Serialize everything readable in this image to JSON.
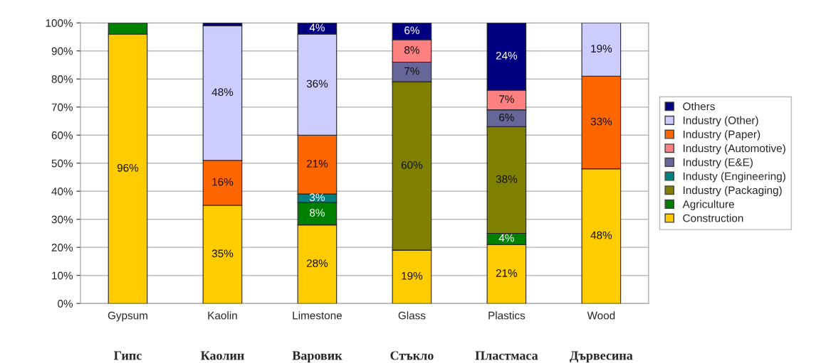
{
  "chart_data": {
    "type": "bar",
    "stacked": true,
    "categories": [
      "Gypsum",
      "Kaolin",
      "Limestone",
      "Glass",
      "Plastics",
      "Wood"
    ],
    "series": [
      {
        "name": "Construction",
        "color": "#ffcc00",
        "values": [
          96,
          35,
          28,
          19,
          21,
          48
        ],
        "value_labels": [
          "96%",
          "35%",
          "28%",
          "19%",
          "21%",
          "48%"
        ]
      },
      {
        "name": "Agriculture",
        "color": "#008000",
        "values": [
          4,
          null,
          8,
          null,
          4,
          null
        ],
        "value_labels": [
          null,
          null,
          "8%",
          null,
          "4%",
          null
        ]
      },
      {
        "name": "Industry (Packaging)",
        "color": "#808000",
        "values": [
          null,
          null,
          null,
          60,
          38,
          null
        ],
        "value_labels": [
          null,
          null,
          null,
          "60%",
          "38%",
          null
        ]
      },
      {
        "name": "Industy (Engineering)",
        "color": "#008080",
        "values": [
          null,
          null,
          3,
          null,
          null,
          null
        ],
        "value_labels": [
          null,
          null,
          "3%",
          null,
          null,
          null
        ]
      },
      {
        "name": "Industry (E&E)",
        "color": "#666699",
        "values": [
          null,
          null,
          null,
          7,
          6,
          null
        ],
        "value_labels": [
          null,
          null,
          null,
          "7%",
          "6%",
          null
        ]
      },
      {
        "name": "Industry (Automotive)",
        "color": "#ff8080",
        "values": [
          null,
          null,
          null,
          8,
          7,
          null
        ],
        "value_labels": [
          null,
          null,
          null,
          "8%",
          "7%",
          null
        ]
      },
      {
        "name": "Industry (Paper)",
        "color": "#ff6600",
        "values": [
          null,
          16,
          21,
          null,
          null,
          33
        ],
        "value_labels": [
          null,
          "16%",
          "21%",
          null,
          null,
          "33%"
        ]
      },
      {
        "name": "Industry (Other)",
        "color": "#ccccff",
        "values": [
          null,
          48,
          36,
          null,
          null,
          19
        ],
        "value_labels": [
          null,
          "48%",
          "36%",
          null,
          null,
          "19%"
        ]
      },
      {
        "name": "Others",
        "color": "#000080",
        "values": [
          null,
          1,
          4,
          6,
          24,
          null
        ],
        "value_labels": [
          null,
          null,
          "4%",
          "6%",
          "24%",
          null
        ]
      }
    ],
    "ylim": [
      0,
      100
    ],
    "yticks": [
      {
        "value": 0,
        "label": "0%"
      },
      {
        "value": 10,
        "label": "10%"
      },
      {
        "value": 20,
        "label": "20%"
      },
      {
        "value": 30,
        "label": "30%"
      },
      {
        "value": 40,
        "label": "40%"
      },
      {
        "value": 50,
        "label": "50%"
      },
      {
        "value": 60,
        "label": "60%"
      },
      {
        "value": 70,
        "label": "70%"
      },
      {
        "value": 80,
        "label": "80%"
      },
      {
        "value": 90,
        "label": "90%"
      },
      {
        "value": 100,
        "label": "100%"
      }
    ],
    "grid": "y",
    "legend": "right",
    "annotations": [
      "Гипс",
      "Каолин",
      "Варовик",
      "Стъкло",
      "Пластмаса",
      "Дървесина"
    ]
  }
}
